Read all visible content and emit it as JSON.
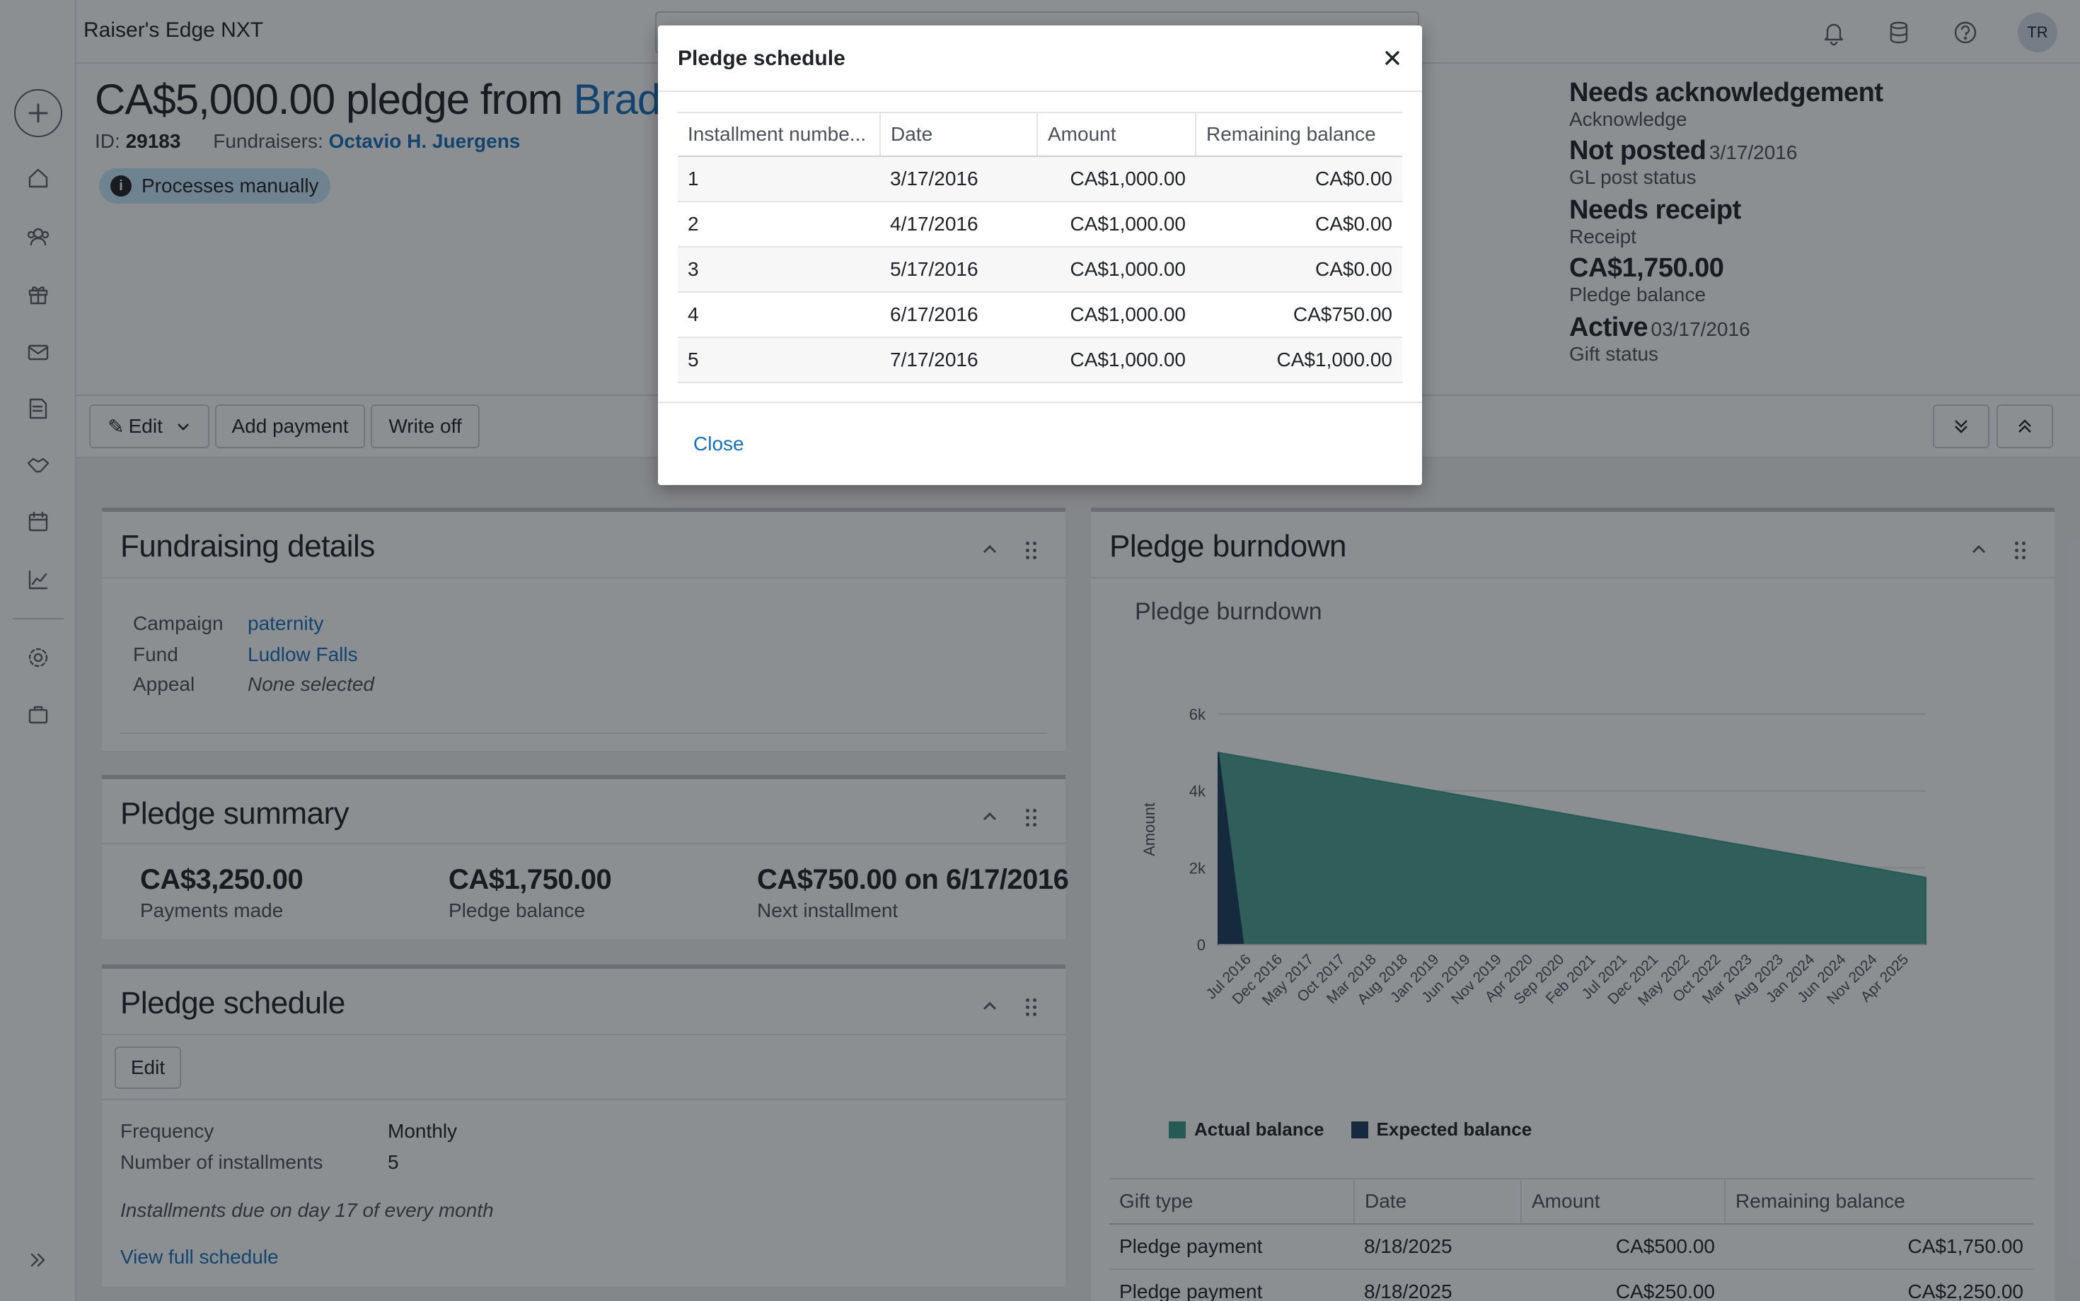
{
  "app": {
    "title": "Raiser's Edge NXT",
    "avatar_initials": "TR"
  },
  "header": {
    "title_prefix": "CA$5,000.00 pledge from ",
    "constituent": "Bradley R. B",
    "id_label": "ID:",
    "id_value": "29183",
    "fundraisers_label": "Fundraisers:",
    "fundraiser": "Octavio H. Juergens",
    "badge": "Processes manually"
  },
  "status_summary": [
    {
      "value": "Needs acknowledgement",
      "date": "",
      "label": "Acknowledge"
    },
    {
      "value": "Not posted",
      "date": "3/17/2016",
      "label": "GL post status"
    },
    {
      "value": "Needs receipt",
      "date": "",
      "label": "Receipt"
    },
    {
      "value": "CA$1,750.00",
      "date": "",
      "label": "Pledge balance"
    },
    {
      "value": "Active",
      "date": "03/17/2016",
      "label": "Gift status"
    }
  ],
  "actions": {
    "edit": "Edit",
    "add_payment": "Add payment",
    "write_off": "Write off"
  },
  "fundraising_details": {
    "title": "Fundraising details",
    "campaign_label": "Campaign",
    "campaign": "paternity",
    "fund_label": "Fund",
    "fund": "Ludlow Falls",
    "appeal_label": "Appeal",
    "appeal": "None selected"
  },
  "pledge_summary": {
    "title": "Pledge summary",
    "payments_made": "CA$3,250.00",
    "payments_made_label": "Payments made",
    "pledge_balance": "CA$1,750.00",
    "pledge_balance_label": "Pledge balance",
    "next_installment": "CA$750.00 on 6/17/2016",
    "next_installment_label": "Next installment"
  },
  "pledge_schedule_tile": {
    "title": "Pledge schedule",
    "edit": "Edit",
    "frequency_label": "Frequency",
    "frequency": "Monthly",
    "installments_label": "Number of installments",
    "installments": "5",
    "note": "Installments due on day 17 of every month",
    "view_full": "View full schedule"
  },
  "burndown": {
    "tile_title": "Pledge burndown",
    "chart_title": "Pledge burndown"
  },
  "chart_data": {
    "type": "area",
    "title": "Pledge burndown",
    "xlabel": "",
    "ylabel": "Amount",
    "ylim": [
      0,
      6000
    ],
    "yticks": [
      "0",
      "2k",
      "4k",
      "6k"
    ],
    "x": [
      "Jul 2016",
      "Dec 2016",
      "May 2017",
      "Oct 2017",
      "Mar 2018",
      "Aug 2018",
      "Jan 2019",
      "Jun 2019",
      "Nov 2019",
      "Apr 2020",
      "Sep 2020",
      "Feb 2021",
      "Jul 2021",
      "Dec 2021",
      "May 2022",
      "Oct 2022",
      "Mar 2023",
      "Aug 2023",
      "Jan 2024",
      "Jun 2024",
      "Nov 2024",
      "Apr 2025"
    ],
    "series": [
      {
        "name": "Actual balance",
        "color": "#3d9a8b",
        "points": [
          [
            "Mar 2016",
            5000
          ],
          [
            "Aug 2025",
            1750
          ]
        ]
      },
      {
        "name": "Expected balance",
        "color": "#1d3f5e",
        "points": [
          [
            "Mar 2016",
            5000
          ],
          [
            "Jul 2016",
            0
          ]
        ]
      }
    ],
    "grid": true,
    "legend": "bottom-left"
  },
  "gifts_table": {
    "columns": [
      "Gift type",
      "Date",
      "Amount",
      "Remaining balance"
    ],
    "rows": [
      [
        "Pledge payment",
        "8/18/2025",
        "CA$500.00",
        "CA$1,750.00"
      ],
      [
        "Pledge payment",
        "8/18/2025",
        "CA$250.00",
        "CA$2,250.00"
      ]
    ]
  },
  "modal": {
    "title": "Pledge schedule",
    "columns": [
      "Installment numbe...",
      "Date",
      "Amount",
      "Remaining balance"
    ],
    "rows": [
      [
        "1",
        "3/17/2016",
        "CA$1,000.00",
        "CA$0.00"
      ],
      [
        "2",
        "4/17/2016",
        "CA$1,000.00",
        "CA$0.00"
      ],
      [
        "3",
        "5/17/2016",
        "CA$1,000.00",
        "CA$0.00"
      ],
      [
        "4",
        "6/17/2016",
        "CA$1,000.00",
        "CA$750.00"
      ],
      [
        "5",
        "7/17/2016",
        "CA$1,000.00",
        "CA$1,000.00"
      ]
    ],
    "close": "Close"
  }
}
